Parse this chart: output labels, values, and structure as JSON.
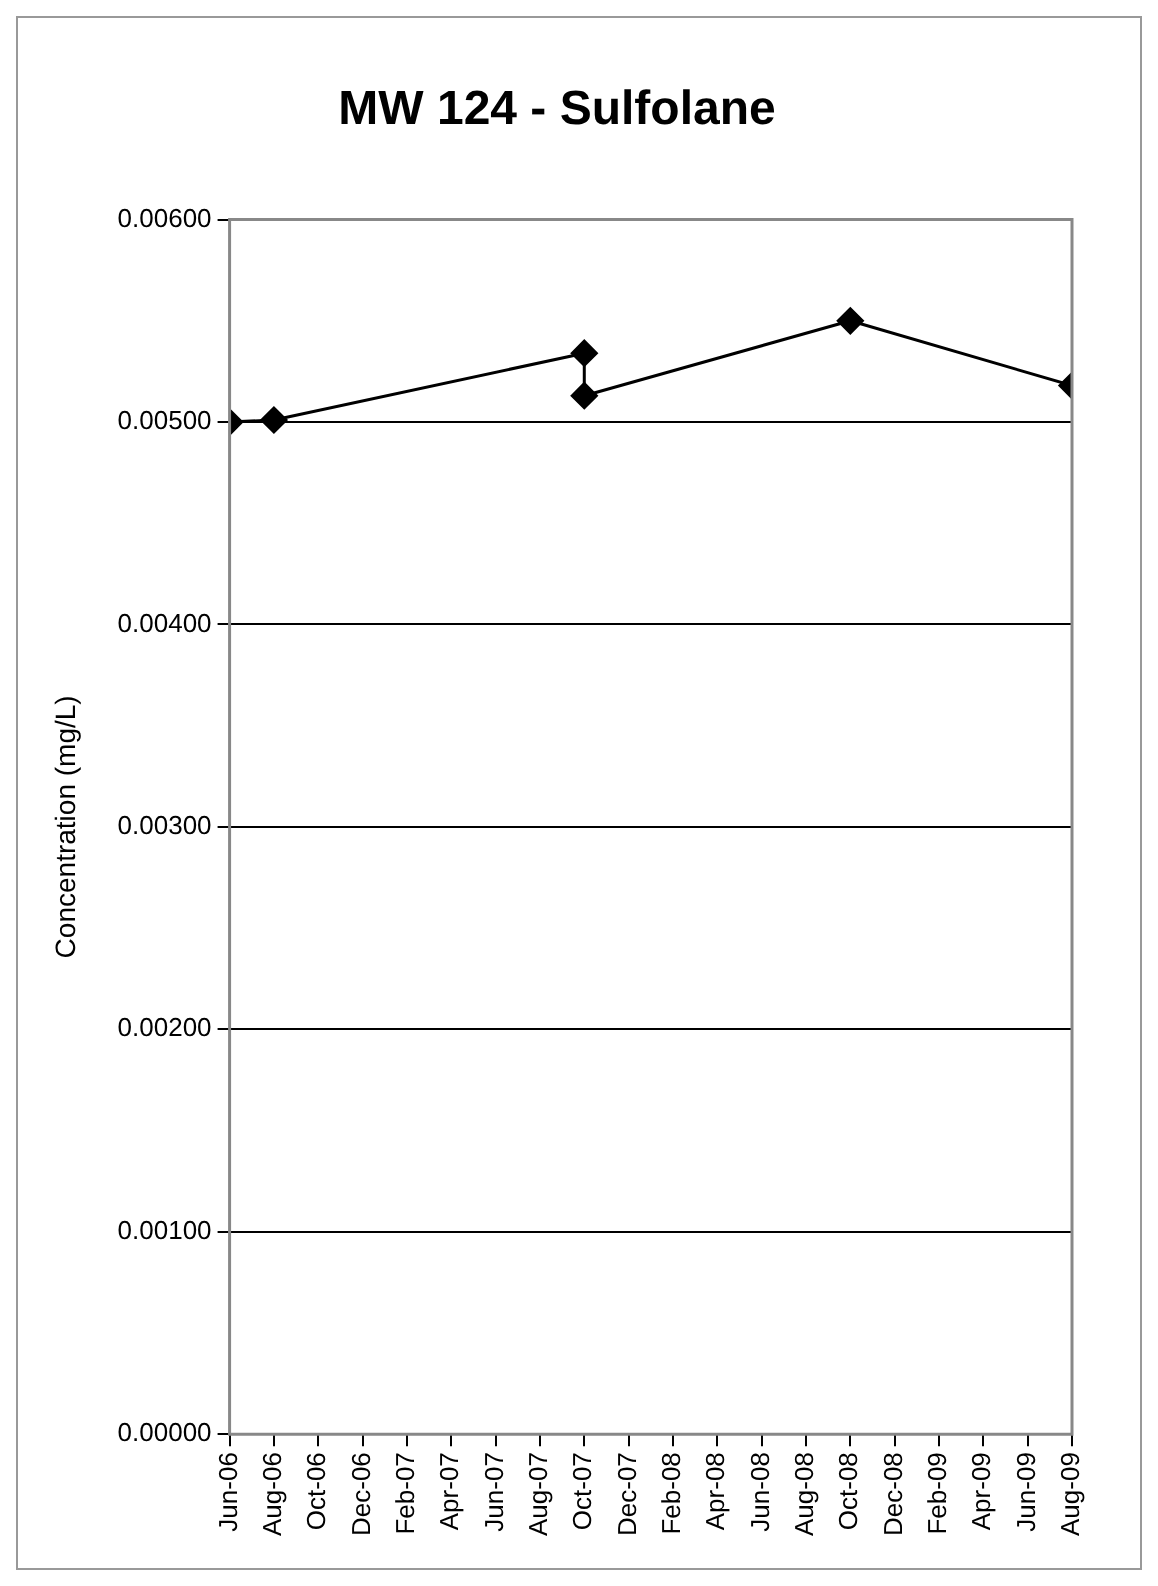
{
  "chart_data": {
    "type": "line",
    "title": "MW 124 - Sulfolane",
    "ylabel": "Concentration (mg/L)",
    "x": [
      "2006-06",
      "2006-08",
      "2007-10",
      "2007-10",
      "2008-10",
      "2009-08"
    ],
    "series": [
      {
        "color": "#000000",
        "values": [
          0.005,
          0.00501,
          0.00534,
          0.00513,
          0.0055,
          0.00518
        ]
      }
    ],
    "xlim": [
      "2006-06",
      "2009-08"
    ],
    "xticks": [
      {
        "value": "2006-06",
        "label": "Jun-06"
      },
      {
        "value": "2006-08",
        "label": "Aug-06"
      },
      {
        "value": "2006-10",
        "label": "Oct-06"
      },
      {
        "value": "2006-12",
        "label": "Dec-06"
      },
      {
        "value": "2007-02",
        "label": "Feb-07"
      },
      {
        "value": "2007-04",
        "label": "Apr-07"
      },
      {
        "value": "2007-06",
        "label": "Jun-07"
      },
      {
        "value": "2007-08",
        "label": "Aug-07"
      },
      {
        "value": "2007-10",
        "label": "Oct-07"
      },
      {
        "value": "2007-12",
        "label": "Dec-07"
      },
      {
        "value": "2008-02",
        "label": "Feb-08"
      },
      {
        "value": "2008-04",
        "label": "Apr-08"
      },
      {
        "value": "2008-06",
        "label": "Jun-08"
      },
      {
        "value": "2008-08",
        "label": "Aug-08"
      },
      {
        "value": "2008-10",
        "label": "Oct-08"
      },
      {
        "value": "2008-12",
        "label": "Dec-08"
      },
      {
        "value": "2009-02",
        "label": "Feb-09"
      },
      {
        "value": "2009-04",
        "label": "Apr-09"
      },
      {
        "value": "2009-06",
        "label": "Jun-09"
      },
      {
        "value": "2009-08",
        "label": "Aug-09"
      }
    ],
    "ylim": [
      0,
      0.006
    ],
    "yticks": [
      {
        "value": 0,
        "label": "0.00000"
      },
      {
        "value": 0.001,
        "label": "0.00100"
      },
      {
        "value": 0.002,
        "label": "0.00200"
      },
      {
        "value": 0.003,
        "label": "0.00300"
      },
      {
        "value": 0.004,
        "label": "0.00400"
      },
      {
        "value": 0.005,
        "label": "0.00500"
      },
      {
        "value": 0.006,
        "label": "0.00600"
      }
    ],
    "grid": "y",
    "legend": false,
    "marker": "diamond",
    "line_style": "solid"
  }
}
